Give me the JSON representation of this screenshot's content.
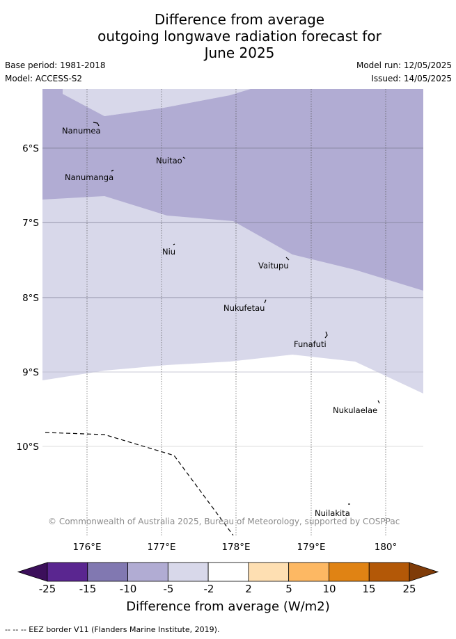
{
  "title": {
    "line1": "Difference from average",
    "line2": "outgoing longwave radiation forecast for",
    "line3": "June 2025"
  },
  "meta": {
    "base_period": "Base period: 1981-2018",
    "model": "Model: ACCESS-S2",
    "model_run": "Model run: 12/05/2025",
    "issued": "Issued: 14/05/2025"
  },
  "map": {
    "lat_labels": [
      "6°S",
      "7°S",
      "8°S",
      "9°S",
      "10°S"
    ],
    "lon_labels": [
      "176°E",
      "177°E",
      "178°E",
      "179°E",
      "180°"
    ],
    "places": [
      "Nanumea",
      "Nuitao",
      "Nanumanga",
      "Niu",
      "Vaitupu",
      "Nukufetau",
      "Funafuti",
      "Nukulaelae",
      "Nuilakita"
    ],
    "copyright": "© Commonwealth of Australia 2025, Bureau of Meteorology, supported by COSPPac",
    "colors": {
      "band_-10_-5": "#b1acd3",
      "band_-5_-2": "#d8d8ea",
      "band_-2_2": "#ffffff"
    }
  },
  "colorbar": {
    "ticks": [
      "-25",
      "-15",
      "-10",
      "-5",
      "-2",
      "2",
      "5",
      "10",
      "15",
      "25"
    ],
    "colors": [
      "#3c0f5b",
      "#5a2690",
      "#8178b1",
      "#b1acd3",
      "#d8d8ea",
      "#ffffff",
      "#fedfb2",
      "#fdb863",
      "#e08314",
      "#b35807",
      "#7f3b08"
    ],
    "label": "Difference from average (W/m2)"
  },
  "footnote": "-- -- -- EEZ border V11 (Flanders Marine Institute, 2019)."
}
